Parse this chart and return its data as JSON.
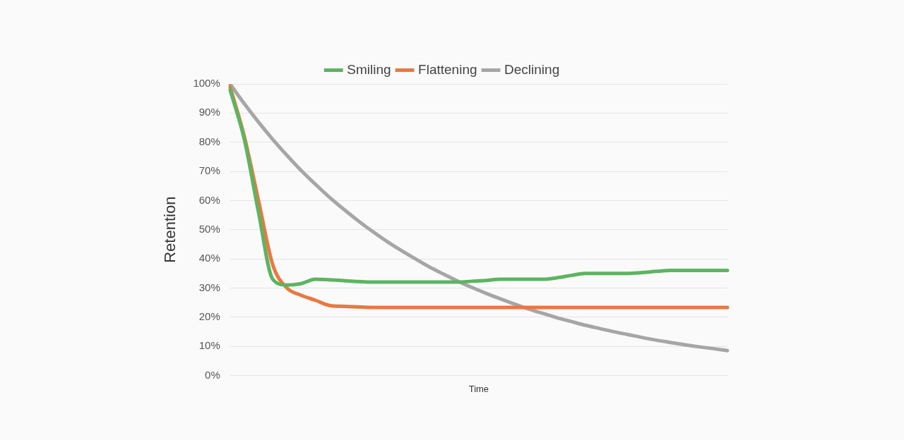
{
  "chart_data": {
    "type": "line",
    "xlabel": "Time",
    "ylabel": "Retention",
    "categories": [
      null,
      null,
      null,
      null,
      null,
      null,
      null,
      null,
      null,
      null,
      null,
      null,
      null,
      null,
      null,
      null,
      null,
      null,
      null,
      null,
      null,
      null,
      null,
      null,
      null,
      null,
      null,
      null,
      null,
      null,
      null,
      null,
      null,
      null,
      null,
      null
    ],
    "series": [
      {
        "name": "Smiling",
        "color": "#5db461",
        "values": [
          98,
          81,
          56,
          33,
          31,
          31.5,
          33,
          32.8,
          32.5,
          32.2,
          32,
          32,
          32,
          32,
          32,
          32,
          32,
          32.3,
          32.6,
          33,
          33,
          33,
          33,
          33.5,
          34.3,
          35,
          35,
          35,
          35,
          35.3,
          35.7,
          36,
          36,
          36,
          36,
          36
        ]
      },
      {
        "name": "Flattening",
        "color": "#e8793f",
        "values": [
          99,
          82,
          60,
          38,
          30,
          27.5,
          25.8,
          24,
          23.7,
          23.5,
          23.3,
          23.3,
          23.3,
          23.3,
          23.3,
          23.3,
          23.3,
          23.3,
          23.3,
          23.3,
          23.3,
          23.3,
          23.3,
          23.3,
          23.3,
          23.3,
          23.3,
          23.3,
          23.3,
          23.3,
          23.3,
          23.3,
          23.3,
          23.3,
          23.3,
          23.3
        ]
      },
      {
        "name": "Declining",
        "color": "#a6a6a6",
        "values": [
          100,
          93.2,
          86.9,
          81,
          75.5,
          70.3,
          65.6,
          61.1,
          57,
          53.1,
          49.5,
          46.1,
          43,
          40.1,
          37.3,
          34.8,
          32.4,
          30.2,
          28.2,
          26.3,
          24.5,
          22.8,
          21.3,
          19.8,
          18.5,
          17.2,
          16.1,
          15,
          14,
          13,
          12.1,
          11.3,
          10.5,
          9.8,
          9.2,
          8.5
        ]
      }
    ],
    "ylim": [
      0,
      100
    ],
    "yticks": [
      {
        "value": 0,
        "label": "0%"
      },
      {
        "value": 10,
        "label": "10%"
      },
      {
        "value": 20,
        "label": "20%"
      },
      {
        "value": 30,
        "label": "30%"
      },
      {
        "value": 40,
        "label": "40%"
      },
      {
        "value": 50,
        "label": "50%"
      },
      {
        "value": 60,
        "label": "60%"
      },
      {
        "value": 70,
        "label": "70%"
      },
      {
        "value": 80,
        "label": "80%"
      },
      {
        "value": 90,
        "label": "90%"
      },
      {
        "value": 100,
        "label": "100%"
      }
    ],
    "grid": "y",
    "legend": "top",
    "marker": "none",
    "line_style": "solid",
    "tick_labels": "y"
  }
}
